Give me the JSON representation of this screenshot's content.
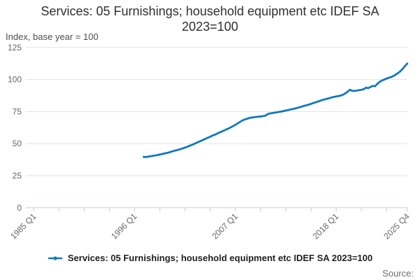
{
  "title": {
    "line1": "Services: 05 Furnishings; household equipment etc IDEF SA",
    "line2": "2023=100"
  },
  "subtitle": "Index, base year = 100",
  "legend": {
    "label": "Services: 05 Furnishings; household equipment etc IDEF SA 2023=100"
  },
  "source_label": "Source:",
  "colors": {
    "line": "#1077bd",
    "grid": "#e2e2e2",
    "axis": "#c3cfdd",
    "axis_text": "#666666",
    "title_text": "#2f2f2f",
    "subtitle_text": "#4d4d4d",
    "legend_text": "#1f1f1f",
    "source_text": "#6e6e6e"
  },
  "chart_data": {
    "type": "line",
    "title": "Services: 05 Furnishings; household equipment etc IDEF SA 2023=100",
    "subtitle": "Index, base year = 100",
    "grid": "horizontal",
    "legend_position": "bottom",
    "x_axis": {
      "start": "1985 Q1",
      "end": "2025 Q4",
      "unit": "quarter",
      "tick_interval_quarters": 11,
      "labeled_ticks": [
        {
          "label": "1985 Q1",
          "quarter_index": 0
        },
        {
          "label": "1996 Q1",
          "quarter_index": 44
        },
        {
          "label": "2007 Q1",
          "quarter_index": 88
        },
        {
          "label": "2018 Q1",
          "quarter_index": 132
        },
        {
          "label": "2025 Q4",
          "quarter_index": 163
        }
      ]
    },
    "y_axis": {
      "label": "Index, base year = 100",
      "ticks": [
        0,
        25,
        50,
        75,
        100,
        125
      ],
      "lim": [
        0,
        131
      ]
    },
    "series": [
      {
        "name": "Services: 05 Furnishings; household equipment etc IDEF SA 2023=100",
        "start": "1997 Q1",
        "start_quarter_index": 48,
        "frequency": "quarterly",
        "values": [
          39.7,
          39.5,
          39.9,
          40.2,
          40.5,
          40.8,
          41.1,
          41.5,
          41.9,
          42.3,
          42.7,
          43.2,
          43.7,
          44.2,
          44.7,
          45.2,
          45.7,
          46.3,
          46.9,
          47.6,
          48.3,
          49.0,
          49.8,
          50.6,
          51.4,
          52.2,
          53.0,
          53.8,
          54.6,
          55.4,
          56.2,
          57.0,
          57.8,
          58.6,
          59.4,
          60.2,
          61.0,
          61.8,
          62.7,
          63.7,
          64.7,
          65.8,
          66.9,
          68.0,
          68.8,
          69.4,
          69.9,
          70.3,
          70.6,
          70.8,
          71.0,
          71.2,
          71.4,
          71.7,
          72.9,
          73.5,
          73.8,
          74.1,
          74.4,
          74.7,
          75.0,
          75.4,
          75.8,
          76.2,
          76.6,
          77.0,
          77.4,
          77.9,
          78.4,
          78.9,
          79.4,
          79.9,
          80.4,
          81.0,
          81.6,
          82.2,
          82.8,
          83.4,
          84.0,
          84.5,
          85.0,
          85.5,
          86.0,
          86.4,
          86.8,
          87.1,
          87.5,
          88.2,
          89.2,
          90.5,
          92.0,
          91.2,
          91.1,
          91.4,
          91.7,
          92.0,
          92.4,
          93.6,
          93.3,
          94.2,
          95.0,
          94.8,
          96.7,
          98.2,
          99.2,
          100.0,
          100.7,
          101.4,
          101.9,
          102.8,
          103.8,
          105.0,
          106.5,
          108.3,
          110.4,
          112.4
        ]
      }
    ]
  }
}
